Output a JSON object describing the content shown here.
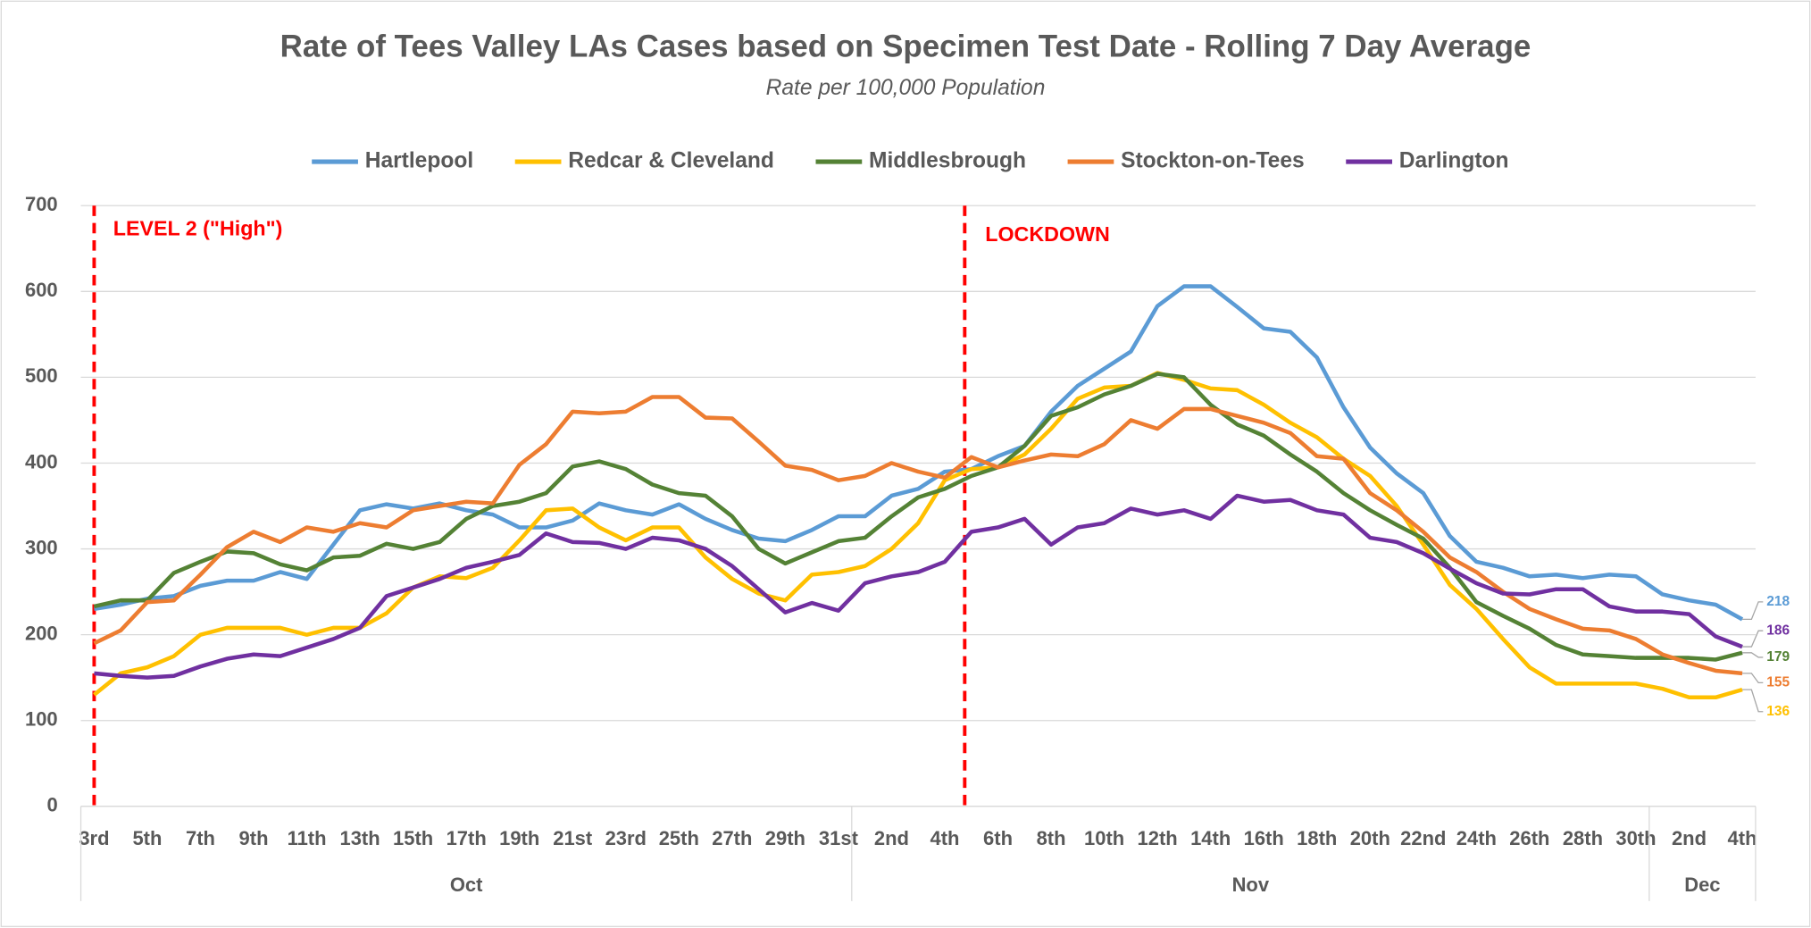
{
  "chart_data": {
    "type": "line",
    "title": "Rate of Tees Valley LAs Cases based on Specimen Test Date - Rolling 7 Day Average",
    "subtitle": "Rate per 100,000 Population",
    "categories": [
      "3rd",
      null,
      "5th",
      null,
      "7th",
      null,
      "9th",
      null,
      "11th",
      null,
      "13th",
      null,
      "15th",
      null,
      "17th",
      null,
      "19th",
      null,
      "21st",
      null,
      "23rd",
      null,
      "25th",
      null,
      "27th",
      null,
      "29th",
      null,
      "31st",
      null,
      "2nd",
      null,
      "4th",
      null,
      "6th",
      null,
      "8th",
      null,
      "10th",
      null,
      "12th",
      null,
      "14th",
      null,
      "16th",
      null,
      "18th",
      null,
      "20th",
      null,
      "22nd",
      null,
      "24th",
      null,
      "26th",
      null,
      "28th",
      null,
      "30th",
      null,
      "2nd",
      null,
      "4th"
    ],
    "x_groups": [
      "Oct",
      "Nov",
      "Dec"
    ],
    "annotations": [
      "LEVEL 2 (\"High\")",
      "LOCKDOWN"
    ],
    "ylim": [
      0,
      700
    ],
    "yticks": [
      0,
      100,
      200,
      300,
      400,
      500,
      600,
      700
    ],
    "grid": true,
    "legend": "top",
    "series": [
      {
        "name": "Hartlepool",
        "color": "#5b9bd5",
        "values": [
          230,
          235,
          242,
          245,
          257,
          263,
          263,
          273,
          265,
          305,
          345,
          352,
          347,
          353,
          345,
          340,
          325,
          325,
          333,
          353,
          345,
          340,
          352,
          335,
          322,
          312,
          309,
          322,
          338,
          338,
          362,
          370,
          390,
          393,
          408,
          420,
          460,
          490,
          510,
          530,
          583,
          606,
          606,
          582,
          557,
          553,
          523,
          465,
          418,
          388,
          365,
          315,
          285,
          278,
          268,
          270,
          266,
          270,
          268,
          247,
          240,
          235,
          218
        ]
      },
      {
        "name": "Redcar & Cleveland",
        "color": "#ffc000",
        "values": [
          130,
          155,
          162,
          175,
          200,
          208,
          208,
          208,
          200,
          208,
          208,
          225,
          255,
          268,
          266,
          278,
          310,
          345,
          347,
          325,
          310,
          325,
          325,
          290,
          265,
          248,
          240,
          270,
          273,
          280,
          300,
          330,
          380,
          393,
          395,
          410,
          440,
          475,
          488,
          490,
          505,
          497,
          487,
          485,
          468,
          447,
          430,
          405,
          385,
          350,
          305,
          258,
          230,
          195,
          162,
          143,
          143,
          143,
          143,
          137,
          127,
          127,
          136
        ]
      },
      {
        "name": "Middlesbrough",
        "color": "#548235",
        "values": [
          233,
          240,
          240,
          272,
          285,
          297,
          295,
          282,
          275,
          290,
          292,
          306,
          300,
          308,
          335,
          350,
          355,
          365,
          396,
          402,
          393,
          375,
          365,
          362,
          338,
          300,
          283,
          296,
          309,
          313,
          338,
          360,
          370,
          385,
          395,
          420,
          455,
          465,
          480,
          490,
          504,
          500,
          468,
          445,
          432,
          410,
          390,
          365,
          345,
          328,
          312,
          278,
          238,
          222,
          207,
          188,
          177,
          175,
          173,
          173,
          173,
          171,
          179
        ]
      },
      {
        "name": "Stockton-on-Tees",
        "color": "#ed7d31",
        "values": [
          190,
          205,
          238,
          240,
          270,
          302,
          320,
          308,
          325,
          320,
          330,
          325,
          345,
          350,
          355,
          353,
          398,
          422,
          460,
          458,
          460,
          477,
          477,
          453,
          452,
          425,
          397,
          392,
          380,
          385,
          400,
          390,
          383,
          407,
          395,
          403,
          410,
          408,
          422,
          450,
          440,
          463,
          463,
          455,
          447,
          435,
          408,
          405,
          365,
          345,
          320,
          290,
          273,
          250,
          230,
          218,
          207,
          205,
          195,
          177,
          167,
          158,
          155
        ]
      },
      {
        "name": "Darlington",
        "color": "#7030a0",
        "values": [
          155,
          152,
          150,
          152,
          163,
          172,
          177,
          175,
          185,
          195,
          208,
          245,
          255,
          265,
          278,
          285,
          293,
          318,
          308,
          307,
          300,
          313,
          310,
          300,
          280,
          253,
          226,
          237,
          228,
          260,
          268,
          273,
          285,
          320,
          325,
          335,
          305,
          325,
          330,
          347,
          340,
          345,
          335,
          362,
          355,
          357,
          345,
          340,
          313,
          308,
          295,
          277,
          260,
          248,
          247,
          253,
          253,
          233,
          227,
          227,
          224,
          198,
          186
        ]
      }
    ]
  }
}
